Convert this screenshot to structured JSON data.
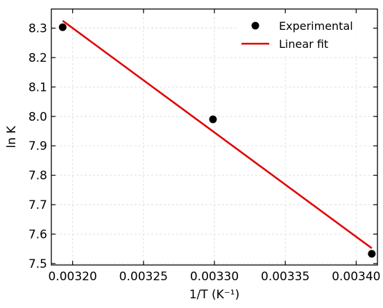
{
  "chart_data": {
    "type": "scatter",
    "xlabel": "1/T (K⁻¹)",
    "ylabel": "ln K",
    "xlim": [
      0.003185,
      0.003415
    ],
    "ylim": [
      7.495,
      8.365
    ],
    "x_ticks": [
      0.0032,
      0.00325,
      0.0033,
      0.00335,
      0.0034
    ],
    "x_tick_labels": [
      "0.00320",
      "0.00325",
      "0.00330",
      "0.00335",
      "0.00340"
    ],
    "y_ticks": [
      7.5,
      7.6,
      7.7,
      7.8,
      7.9,
      8.0,
      8.1,
      8.2,
      8.3
    ],
    "y_tick_labels": [
      "7.5",
      "7.6",
      "7.7",
      "7.8",
      "7.9",
      "8.0",
      "8.1",
      "8.2",
      "8.3"
    ],
    "grid": true,
    "legend_position": "top-right",
    "series": [
      {
        "name": "Experimental",
        "type": "scatter",
        "color": "#000000",
        "x": [
          0.003193,
          0.003299,
          0.003411
        ],
        "y": [
          8.303,
          7.99,
          7.533
        ]
      },
      {
        "name": "Linear fit",
        "type": "line",
        "color": "#e00000",
        "x": [
          0.003193,
          0.003411
        ],
        "y": [
          8.325,
          7.552
        ]
      }
    ]
  }
}
